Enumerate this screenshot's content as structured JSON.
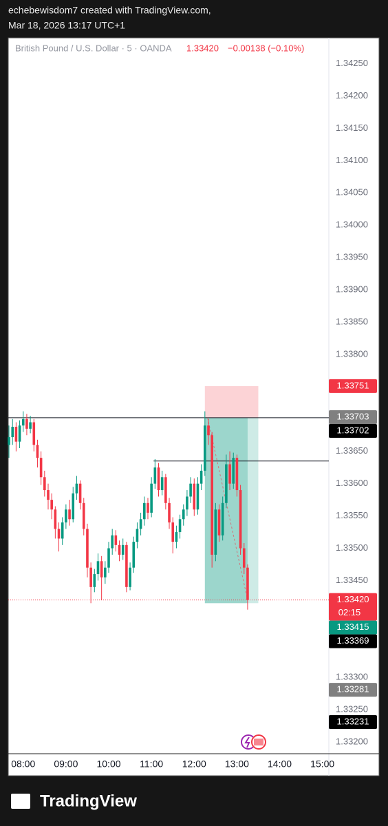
{
  "header": {
    "author_line": "echebewisdom7 created with TradingView.com,",
    "date_line": "Mar 18, 2026 13:17 UTC+1"
  },
  "chart_data": {
    "type": "candlestick",
    "symbol": "British Pound / U.S. Dollar · 5 · OANDA",
    "last_price": "1.33420",
    "change": "−0.00138 (−0.10%)",
    "up_color": "#089981",
    "down_color": "#f23645",
    "x": [
      460,
      465,
      470,
      475,
      480,
      485,
      490,
      495,
      500,
      505,
      510,
      515,
      520,
      525,
      530,
      535,
      540,
      545,
      550,
      555,
      560,
      565,
      570,
      575,
      580,
      585,
      590,
      595,
      600,
      605,
      610,
      615,
      620,
      625,
      630,
      635,
      640,
      645,
      650,
      655,
      660,
      665,
      670,
      675,
      680,
      685,
      690,
      695,
      700,
      705,
      710,
      715,
      720,
      725,
      730,
      735,
      740,
      745,
      750,
      755,
      760,
      765,
      770,
      775,
      780,
      785,
      790,
      795
    ],
    "values": [
      [
        1.3366,
        1.3369,
        1.3364,
        1.33672
      ],
      [
        1.33672,
        1.337,
        1.3366,
        1.33688
      ],
      [
        1.33688,
        1.33695,
        1.3365,
        1.33665
      ],
      [
        1.33665,
        1.33698,
        1.33655,
        1.3369
      ],
      [
        1.3369,
        1.33712,
        1.3368,
        1.337
      ],
      [
        1.337,
        1.33708,
        1.33675,
        1.33685
      ],
      [
        1.33685,
        1.33705,
        1.33678,
        1.33695
      ],
      [
        1.33695,
        1.337,
        1.3365,
        1.3366
      ],
      [
        1.3366,
        1.33668,
        1.33625,
        1.3364
      ],
      [
        1.3364,
        1.3365,
        1.33598,
        1.3361
      ],
      [
        1.3361,
        1.3362,
        1.3358,
        1.3359
      ],
      [
        1.3359,
        1.336,
        1.3356,
        1.33575
      ],
      [
        1.33575,
        1.33585,
        1.33545,
        1.3356
      ],
      [
        1.3356,
        1.33565,
        1.33515,
        1.3353
      ],
      [
        1.3353,
        1.3354,
        1.33495,
        1.33515
      ],
      [
        1.33515,
        1.33548,
        1.33505,
        1.3354
      ],
      [
        1.3354,
        1.33568,
        1.3353,
        1.3356
      ],
      [
        1.3356,
        1.33575,
        1.33535,
        1.33545
      ],
      [
        1.33545,
        1.33595,
        1.3354,
        1.33585
      ],
      [
        1.33585,
        1.33612,
        1.33575,
        1.336
      ],
      [
        1.336,
        1.33605,
        1.3356,
        1.3357
      ],
      [
        1.3357,
        1.33578,
        1.3352,
        1.3353
      ],
      [
        1.3353,
        1.33538,
        1.33455,
        1.3347
      ],
      [
        1.3347,
        1.33478,
        1.33415,
        1.3344
      ],
      [
        1.3344,
        1.33468,
        1.33432,
        1.3346
      ],
      [
        1.3346,
        1.33492,
        1.3345,
        1.3348
      ],
      [
        1.3348,
        1.33488,
        1.3342,
        1.33455
      ],
      [
        1.33455,
        1.3348,
        1.33445,
        1.3347
      ],
      [
        1.3347,
        1.3351,
        1.33462,
        1.335
      ],
      [
        1.335,
        1.3353,
        1.3349,
        1.3352
      ],
      [
        1.3352,
        1.33528,
        1.33495,
        1.33505
      ],
      [
        1.33505,
        1.33512,
        1.3348,
        1.3349
      ],
      [
        1.3349,
        1.33515,
        1.33482,
        1.33505
      ],
      [
        1.33505,
        1.3351,
        1.33432,
        1.3344
      ],
      [
        1.3344,
        1.33478,
        1.33435,
        1.3347
      ],
      [
        1.3347,
        1.33518,
        1.33462,
        1.3351
      ],
      [
        1.3351,
        1.3354,
        1.335,
        1.3353
      ],
      [
        1.3353,
        1.33555,
        1.3352,
        1.33545
      ],
      [
        1.33545,
        1.3358,
        1.33535,
        1.3357
      ],
      [
        1.3357,
        1.33578,
        1.33545,
        1.33555
      ],
      [
        1.33555,
        1.3361,
        1.33548,
        1.336
      ],
      [
        1.336,
        1.33638,
        1.33592,
        1.33625
      ],
      [
        1.33625,
        1.33632,
        1.3358,
        1.3359
      ],
      [
        1.3359,
        1.3362,
        1.33582,
        1.3361
      ],
      [
        1.3361,
        1.33615,
        1.3356,
        1.3357
      ],
      [
        1.3357,
        1.33578,
        1.3353,
        1.3354
      ],
      [
        1.3354,
        1.33548,
        1.33492,
        1.3351
      ],
      [
        1.3351,
        1.33535,
        1.335,
        1.33525
      ],
      [
        1.33525,
        1.33552,
        1.33515,
        1.33545
      ],
      [
        1.33545,
        1.33568,
        1.33535,
        1.3356
      ],
      [
        1.3356,
        1.3359,
        1.3355,
        1.3358
      ],
      [
        1.3358,
        1.3361,
        1.3357,
        1.336
      ],
      [
        1.336,
        1.33608,
        1.3355,
        1.3356
      ],
      [
        1.3356,
        1.3361,
        1.33552,
        1.336
      ],
      [
        1.336,
        1.3363,
        1.3359,
        1.3362
      ],
      [
        1.3362,
        1.33712,
        1.33612,
        1.3369
      ],
      [
        1.3369,
        1.337,
        1.3366,
        1.33675
      ],
      [
        1.33675,
        1.3368,
        1.3347,
        1.3349
      ],
      [
        1.3349,
        1.3357,
        1.3348,
        1.3356
      ],
      [
        1.3356,
        1.33568,
        1.3351,
        1.3352
      ],
      [
        1.3352,
        1.3358,
        1.33512,
        1.3357
      ],
      [
        1.3357,
        1.33645,
        1.33562,
        1.3363
      ],
      [
        1.3363,
        1.3365,
        1.3359,
        1.336
      ],
      [
        1.336,
        1.33648,
        1.33592,
        1.3364
      ],
      [
        1.3364,
        1.33645,
        1.3358,
        1.3359
      ],
      [
        1.3359,
        1.33598,
        1.3349,
        1.335
      ],
      [
        1.335,
        1.33508,
        1.3346,
        1.3347
      ],
      [
        1.3347,
        1.33475,
        1.33405,
        1.3342
      ]
    ],
    "xlim": [
      459,
      909
    ],
    "xticks": [
      {
        "value": 480,
        "label": "08:00"
      },
      {
        "value": 540,
        "label": "09:00"
      },
      {
        "value": 600,
        "label": "10:00"
      },
      {
        "value": 660,
        "label": "11:00"
      },
      {
        "value": 720,
        "label": "12:00"
      },
      {
        "value": 780,
        "label": "13:00"
      },
      {
        "value": 840,
        "label": "14:00"
      },
      {
        "value": 900,
        "label": "15:00"
      }
    ],
    "ylim": [
      1.33182,
      1.3429
    ],
    "yticks": [
      {
        "value": 1.3425,
        "label": "1.34250"
      },
      {
        "value": 1.342,
        "label": "1.34200"
      },
      {
        "value": 1.3415,
        "label": "1.34150"
      },
      {
        "value": 1.341,
        "label": "1.34100"
      },
      {
        "value": 1.3405,
        "label": "1.34050"
      },
      {
        "value": 1.34,
        "label": "1.34000"
      },
      {
        "value": 1.3395,
        "label": "1.33950"
      },
      {
        "value": 1.339,
        "label": "1.33900"
      },
      {
        "value": 1.3385,
        "label": "1.33850"
      },
      {
        "value": 1.338,
        "label": "1.33800"
      },
      {
        "value": 1.3365,
        "label": "1.33650"
      },
      {
        "value": 1.336,
        "label": "1.33600"
      },
      {
        "value": 1.3355,
        "label": "1.33550"
      },
      {
        "value": 1.335,
        "label": "1.33500"
      },
      {
        "value": 1.3345,
        "label": "1.33450"
      },
      {
        "value": 1.333,
        "label": "1.33300"
      },
      {
        "value": 1.3325,
        "label": "1.33250"
      },
      {
        "value": 1.332,
        "label": "1.33200"
      }
    ],
    "price_tags": [
      {
        "value": 1.33751,
        "label": "1.33751",
        "color": "#f23645"
      },
      {
        "value": 1.33703,
        "label": "1.33703",
        "color": "#808080"
      },
      {
        "value": 1.33702,
        "label": "1.33702",
        "color": "#000000"
      },
      {
        "value": 1.3342,
        "label": "1.33420",
        "color": "#f23645",
        "countdown": "02:15"
      },
      {
        "value": 1.33415,
        "label": "1.33415",
        "color": "#089981"
      },
      {
        "value": 1.33369,
        "label": "1.33369",
        "color": "#000000"
      },
      {
        "value": 1.33281,
        "label": "1.33281",
        "color": "#808080"
      },
      {
        "value": 1.33231,
        "label": "1.33231",
        "color": "#000000"
      }
    ],
    "position": {
      "entry": 1.33702,
      "stop": 1.33751,
      "target": 1.33415,
      "x_start": 735,
      "x_end": 810
    },
    "hlines": [
      {
        "value": 1.33702,
        "x_start": 459
      },
      {
        "value": 1.33635,
        "x_start": 663
      }
    ],
    "current_price_line": 1.3342
  },
  "footer": {
    "brand": "TradingView"
  }
}
